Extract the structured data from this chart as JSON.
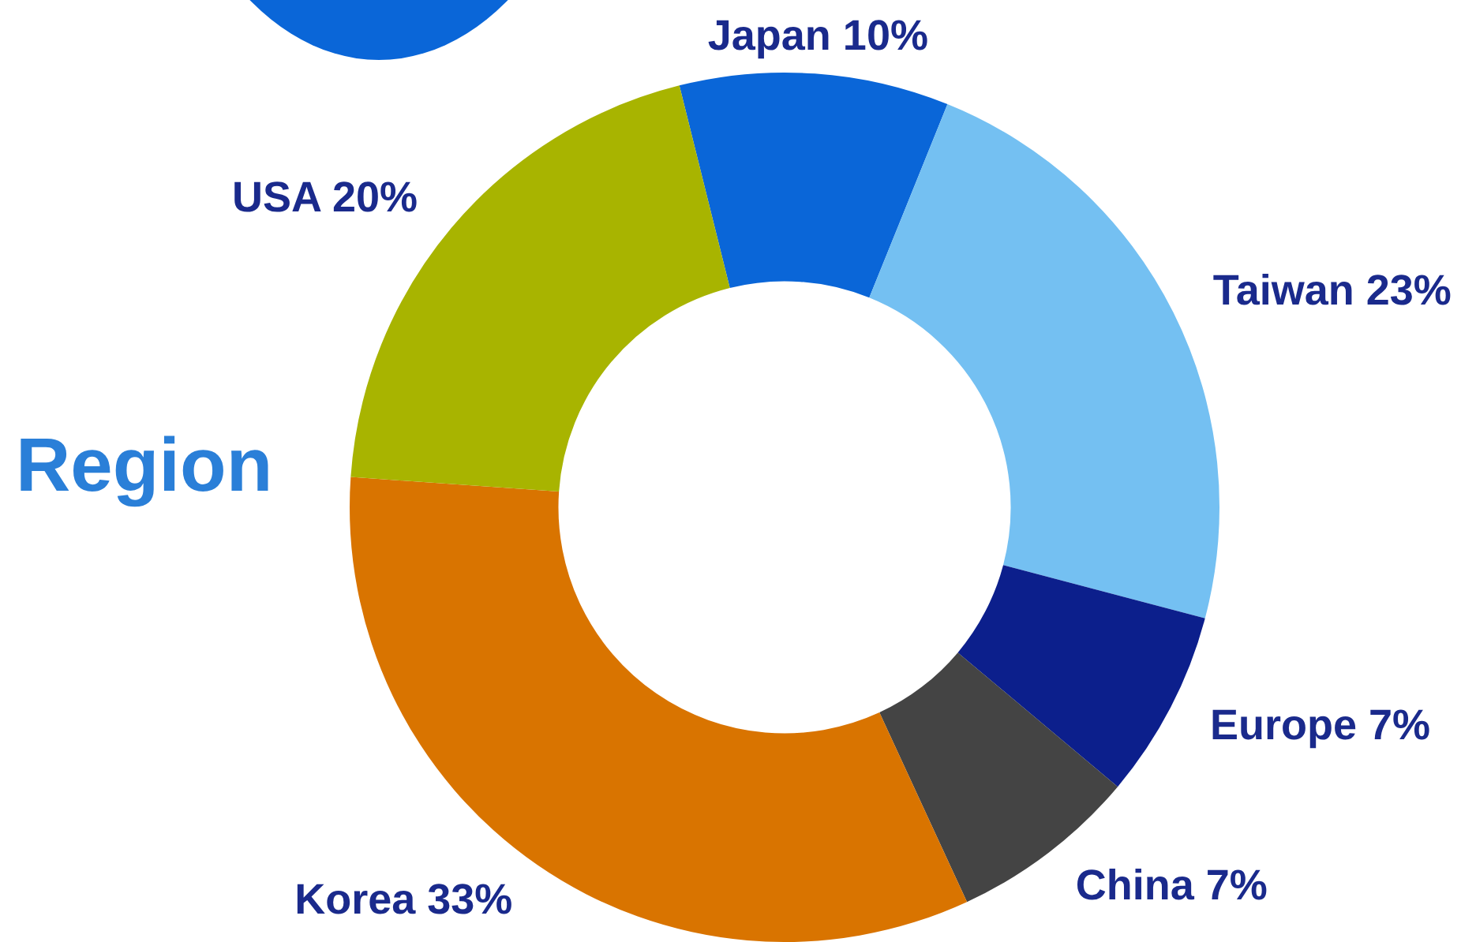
{
  "chart_data": {
    "type": "donut",
    "title": "Region",
    "categories": [
      "Japan",
      "Taiwan",
      "Europe",
      "China",
      "Korea",
      "USA"
    ],
    "values": [
      10,
      23,
      7,
      7,
      33,
      20
    ],
    "value_labels": [
      "10%",
      "23%",
      "7%",
      "7%",
      "33%",
      "20%"
    ],
    "colors": [
      "#0a66d8",
      "#74c0f2",
      "#0c1f8c",
      "#444444",
      "#d97400",
      "#a8b400"
    ],
    "legend": false
  }
}
